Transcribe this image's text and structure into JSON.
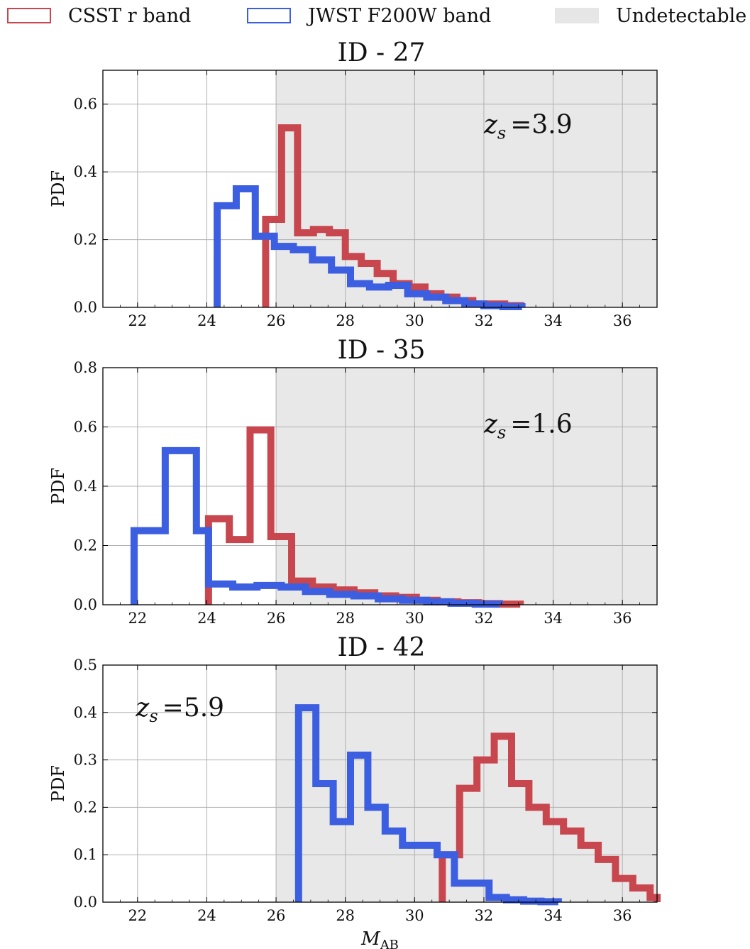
{
  "legend": {
    "items": [
      {
        "label": "CSST r band",
        "color": "#c8464e",
        "kind": "outline"
      },
      {
        "label": "JWST F200W band",
        "color": "#3c5ee0",
        "kind": "outline"
      },
      {
        "label": "Undetectable",
        "color": "#e6e6e6",
        "kind": "fill"
      }
    ]
  },
  "colors": {
    "csst": "#c8464e",
    "jwst": "#3c5ee0",
    "shade": "#e8e8e8",
    "grid": "#b0b0b0"
  },
  "chart_data": [
    {
      "type": "step-histogram",
      "title": "ID - 27",
      "ylabel": "PDF",
      "xlabel": "",
      "xlim": [
        21,
        37
      ],
      "ylim": [
        0,
        0.7
      ],
      "xticks": [
        22,
        24,
        26,
        28,
        30,
        32,
        34,
        36
      ],
      "yticks": [
        0.0,
        0.2,
        0.4,
        0.6
      ],
      "ytick_labels": [
        "0.0",
        "0.2",
        "0.4",
        "0.6"
      ],
      "undetectable_from": 26,
      "annotation": {
        "text": "=3.9",
        "var": "z",
        "sub": "s",
        "anchor": [
          32,
          0.54
        ]
      },
      "series": [
        {
          "name": "CSST r band",
          "color_key": "csst",
          "edges": [
            25.7,
            26.16,
            26.62,
            27.08,
            27.54,
            28.0,
            28.46,
            28.92,
            29.38,
            29.84,
            30.3,
            30.76,
            31.22,
            31.68,
            32.14,
            32.6,
            33.06
          ],
          "values": [
            0.26,
            0.53,
            0.22,
            0.23,
            0.22,
            0.15,
            0.13,
            0.1,
            0.07,
            0.06,
            0.04,
            0.03,
            0.02,
            0.01,
            0.01,
            0.005
          ]
        },
        {
          "name": "JWST F200W band",
          "color_key": "jwst",
          "edges": [
            24.3,
            24.85,
            25.4,
            25.95,
            26.5,
            27.05,
            27.6,
            28.15,
            28.7,
            29.25,
            29.8,
            30.35,
            30.9,
            31.45,
            32.0,
            32.55,
            33.1
          ],
          "values": [
            0.3,
            0.35,
            0.21,
            0.18,
            0.17,
            0.14,
            0.11,
            0.07,
            0.06,
            0.065,
            0.04,
            0.03,
            0.02,
            0.01,
            0.005,
            0.002
          ]
        }
      ]
    },
    {
      "type": "step-histogram",
      "title": "ID - 35",
      "ylabel": "PDF",
      "xlabel": "",
      "xlim": [
        21,
        37
      ],
      "ylim": [
        0,
        0.8
      ],
      "xticks": [
        22,
        24,
        26,
        28,
        30,
        32,
        34,
        36
      ],
      "yticks": [
        0.0,
        0.2,
        0.4,
        0.6,
        0.8
      ],
      "ytick_labels": [
        "0.0",
        "0.2",
        "0.4",
        "0.6",
        "0.8"
      ],
      "undetectable_from": 26,
      "annotation": {
        "text": "=1.6",
        "var": "z",
        "sub": "s",
        "anchor": [
          32,
          0.61
        ]
      },
      "series": [
        {
          "name": "CSST r band",
          "color_key": "csst",
          "edges": [
            24.05,
            24.65,
            25.25,
            25.85,
            26.45,
            27.05,
            27.65,
            28.25,
            28.85,
            29.45,
            30.05,
            30.65,
            31.25,
            31.85,
            32.45,
            33.05
          ],
          "values": [
            0.29,
            0.22,
            0.59,
            0.23,
            0.08,
            0.06,
            0.05,
            0.04,
            0.03,
            0.025,
            0.015,
            0.01,
            0.007,
            0.004,
            0.002
          ]
        },
        {
          "name": "JWST F200W band",
          "color_key": "jwst",
          "edges": [
            21.9,
            22.8,
            23.7,
            24.05,
            24.75,
            25.45,
            26.15,
            26.85,
            27.55,
            28.25,
            28.95,
            29.65,
            30.35,
            31.05,
            31.75,
            32.45
          ],
          "values": [
            0.25,
            0.52,
            0.25,
            0.07,
            0.06,
            0.065,
            0.06,
            0.045,
            0.035,
            0.03,
            0.02,
            0.015,
            0.01,
            0.005,
            0.002
          ]
        }
      ]
    },
    {
      "type": "step-histogram",
      "title": "ID - 42",
      "ylabel": "PDF",
      "xlabel": "M_AB",
      "xlim": [
        21,
        37
      ],
      "ylim": [
        0,
        0.5
      ],
      "xticks": [
        22,
        24,
        26,
        28,
        30,
        32,
        34,
        36
      ],
      "yticks": [
        0.0,
        0.1,
        0.2,
        0.3,
        0.4,
        0.5
      ],
      "ytick_labels": [
        "0.0",
        "0.1",
        "0.2",
        "0.3",
        "0.4",
        "0.5"
      ],
      "undetectable_from": 26,
      "annotation": {
        "text": "=5.9",
        "var": "z",
        "sub": "s",
        "anchor": [
          21.95,
          0.41
        ]
      },
      "series": [
        {
          "name": "CSST r band",
          "color_key": "csst",
          "edges": [
            30.8,
            31.3,
            31.8,
            32.3,
            32.8,
            33.3,
            33.8,
            34.3,
            34.8,
            35.3,
            35.8,
            36.3,
            36.8,
            37.0
          ],
          "values": [
            0.1,
            0.24,
            0.3,
            0.35,
            0.25,
            0.2,
            0.17,
            0.15,
            0.12,
            0.09,
            0.05,
            0.03,
            0.01
          ]
        },
        {
          "name": "JWST F200W band",
          "color_key": "jwst",
          "edges": [
            26.65,
            27.15,
            27.65,
            28.15,
            28.65,
            29.15,
            29.65,
            30.15,
            30.65,
            31.15,
            31.65,
            32.15,
            32.65,
            33.15,
            33.65,
            34.15
          ],
          "values": [
            0.41,
            0.25,
            0.17,
            0.31,
            0.2,
            0.15,
            0.12,
            0.12,
            0.1,
            0.04,
            0.04,
            0.01,
            0.005,
            0.002,
            0.001
          ]
        }
      ]
    }
  ]
}
